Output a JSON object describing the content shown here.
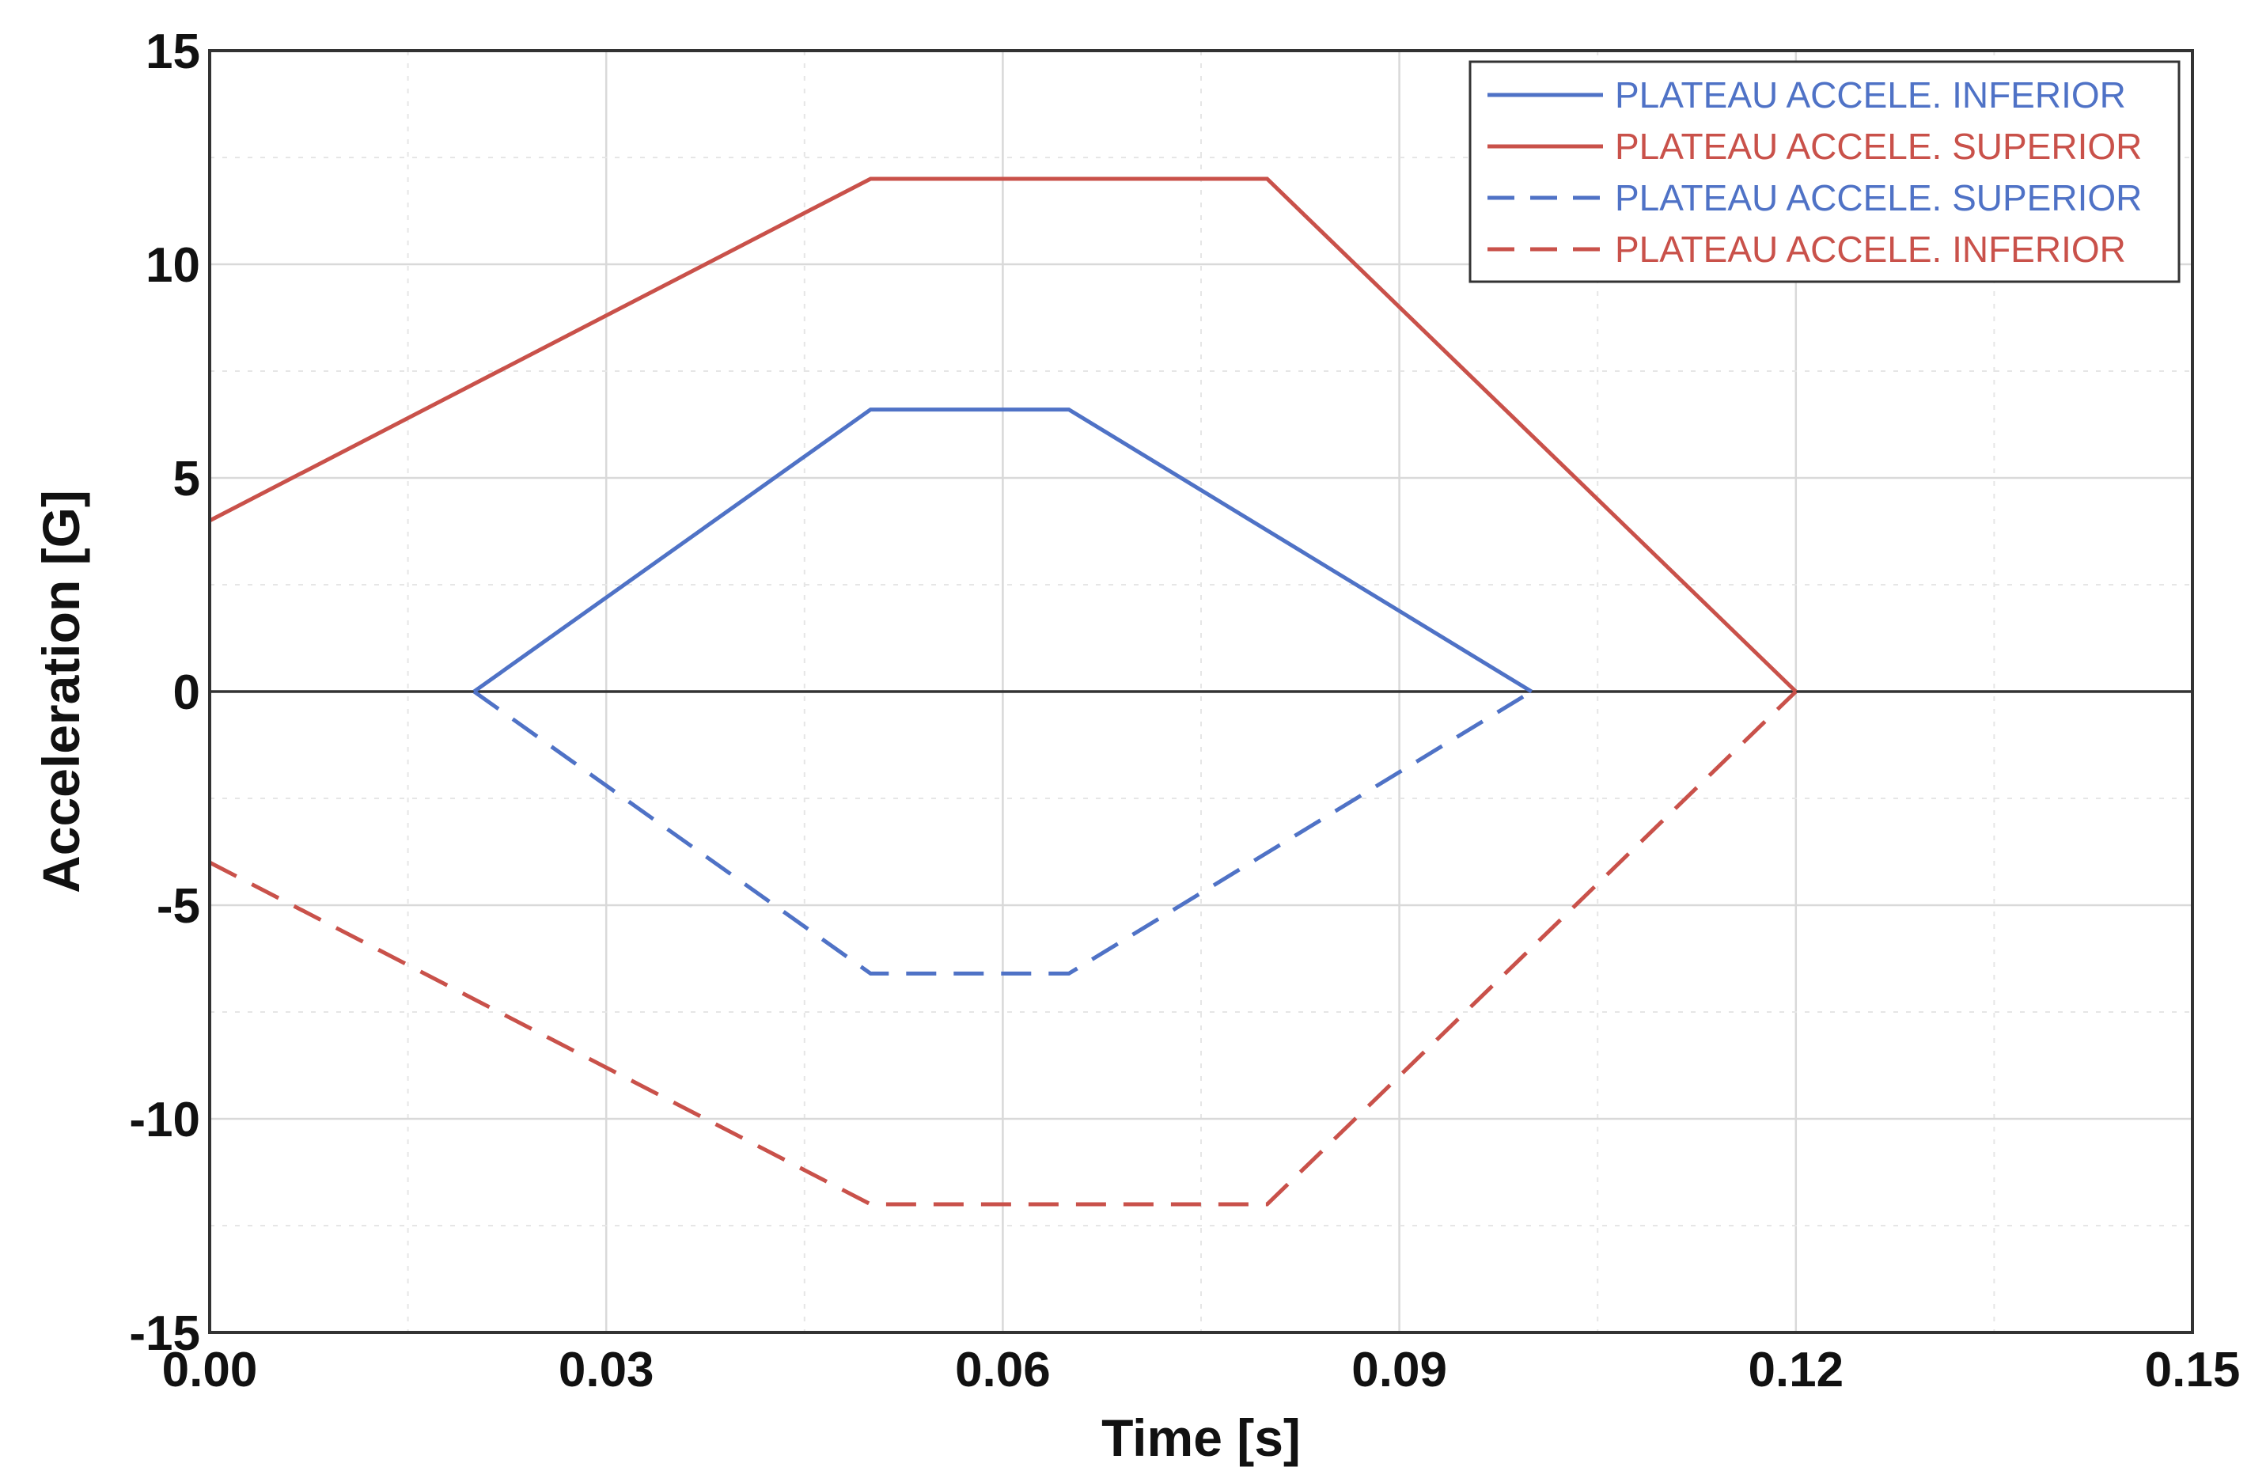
{
  "chart_data": {
    "type": "line",
    "title": "",
    "xlabel": "Time [s]",
    "ylabel": "Acceleration [G]",
    "xlim": [
      0,
      0.15
    ],
    "ylim": [
      -15,
      15
    ],
    "x_ticks": [
      "0.00",
      "0.03",
      "0.06",
      "0.09",
      "0.12",
      "0.15"
    ],
    "x_tick_values": [
      0,
      0.03,
      0.06,
      0.09,
      0.12,
      0.15
    ],
    "y_ticks": [
      "15",
      "10",
      "5",
      "0",
      "-5",
      "-10",
      "-15"
    ],
    "y_tick_values": [
      15,
      10,
      5,
      0,
      -5,
      -10,
      -15
    ],
    "grid": true,
    "legend_position": "top-right",
    "series": [
      {
        "name": "PLATEAU ACCELE. INFERIOR",
        "color": "#4f72c6",
        "style": "solid",
        "x": [
          0.02,
          0.05,
          0.065,
          0.1
        ],
        "y": [
          0,
          6.6,
          6.6,
          0
        ]
      },
      {
        "name": "PLATEAU ACCELE. SUPERIOR",
        "color": "#c9514a",
        "style": "solid",
        "x": [
          0.0,
          0.05,
          0.08,
          0.12
        ],
        "y": [
          4,
          12,
          12,
          0
        ]
      },
      {
        "name": "PLATEAU ACCELE. SUPERIOR",
        "color": "#4f72c6",
        "style": "dashed",
        "x": [
          0.02,
          0.05,
          0.065,
          0.1
        ],
        "y": [
          0,
          -6.6,
          -6.6,
          0
        ]
      },
      {
        "name": "PLATEAU ACCELE. INFERIOR",
        "color": "#c9514a",
        "style": "dashed",
        "x": [
          0.0,
          0.05,
          0.08,
          0.12
        ],
        "y": [
          -4,
          -12,
          -12,
          0
        ]
      }
    ]
  }
}
